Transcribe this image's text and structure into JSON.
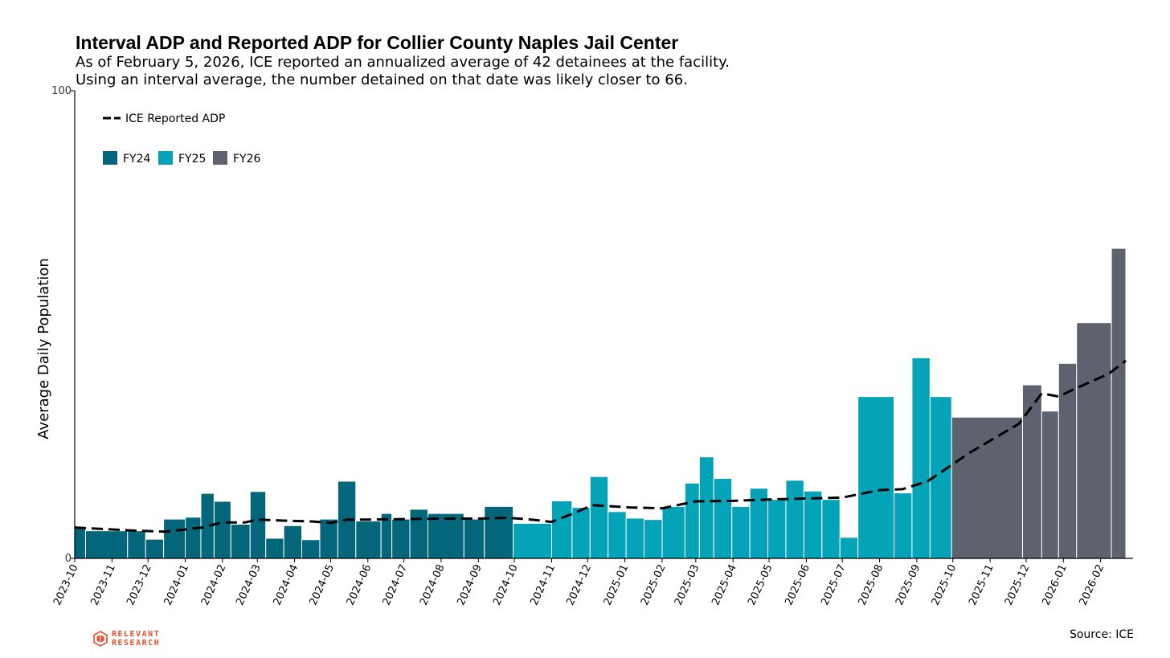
{
  "title": "Interval ADP and Reported ADP for Collier County Naples Jail Center",
  "subtitle_lines": [
    "As of February 5, 2026, ICE reported an annualized average of 42 detainees at the facility.",
    "Using an interval average, the number detained on that date was likely closer to 66."
  ],
  "source": "Source: ICE",
  "logo": {
    "line1": "RELEVANT",
    "line2": "RESEARCH",
    "color": "#e0502a"
  },
  "colors": {
    "FY24": "#03667a",
    "FY25": "#05a3b8",
    "FY26": "#5e616e",
    "line": "#000000"
  },
  "chart_data": {
    "type": "bar",
    "ylabel": "Average Daily Population",
    "xlabel": "",
    "ylim": [
      0,
      100
    ],
    "yticks": [
      0,
      100
    ],
    "xlim": [
      "2023-10-01",
      "2026-02-28"
    ],
    "xticks": [
      "2023-10",
      "2023-11",
      "2023-12",
      "2024-01",
      "2024-02",
      "2024-03",
      "2024-04",
      "2024-05",
      "2024-06",
      "2024-07",
      "2024-08",
      "2024-09",
      "2024-10",
      "2024-11",
      "2024-12",
      "2025-01",
      "2025-02",
      "2025-03",
      "2025-04",
      "2025-05",
      "2025-06",
      "2025-07",
      "2025-08",
      "2025-09",
      "2025-10",
      "2025-11",
      "2025-12",
      "2026-01",
      "2026-02"
    ],
    "legend": {
      "position": "top-left",
      "line_label": "ICE Reported ADP",
      "fiscal_years": [
        "FY24",
        "FY25",
        "FY26"
      ]
    },
    "bars": [
      {
        "start": "2023-10-01",
        "end": "2023-10-10",
        "value": 6.5,
        "fy": "FY24"
      },
      {
        "start": "2023-10-10",
        "end": "2023-11-14",
        "value": 5.9,
        "fy": "FY24"
      },
      {
        "start": "2023-11-14",
        "end": "2023-11-29",
        "value": 5.9,
        "fy": "FY24"
      },
      {
        "start": "2023-11-29",
        "end": "2023-12-14",
        "value": 4.1,
        "fy": "FY24"
      },
      {
        "start": "2023-12-14",
        "end": "2024-01-01",
        "value": 8.4,
        "fy": "FY24"
      },
      {
        "start": "2024-01-01",
        "end": "2024-01-14",
        "value": 8.8,
        "fy": "FY24"
      },
      {
        "start": "2024-01-14",
        "end": "2024-01-25",
        "value": 13.9,
        "fy": "FY24"
      },
      {
        "start": "2024-01-25",
        "end": "2024-02-08",
        "value": 12.2,
        "fy": "FY24"
      },
      {
        "start": "2024-02-08",
        "end": "2024-02-24",
        "value": 7.3,
        "fy": "FY24"
      },
      {
        "start": "2024-02-24",
        "end": "2024-03-08",
        "value": 14.3,
        "fy": "FY24"
      },
      {
        "start": "2024-03-08",
        "end": "2024-03-23",
        "value": 4.3,
        "fy": "FY24"
      },
      {
        "start": "2024-03-23",
        "end": "2024-04-07",
        "value": 7.0,
        "fy": "FY24"
      },
      {
        "start": "2024-04-07",
        "end": "2024-04-22",
        "value": 4.0,
        "fy": "FY24"
      },
      {
        "start": "2024-04-22",
        "end": "2024-05-07",
        "value": 8.4,
        "fy": "FY24"
      },
      {
        "start": "2024-05-07",
        "end": "2024-05-22",
        "value": 16.5,
        "fy": "FY24"
      },
      {
        "start": "2024-05-22",
        "end": "2024-06-12",
        "value": 8.0,
        "fy": "FY24"
      },
      {
        "start": "2024-06-12",
        "end": "2024-06-21",
        "value": 9.6,
        "fy": "FY24"
      },
      {
        "start": "2024-06-21",
        "end": "2024-07-06",
        "value": 8.4,
        "fy": "FY24"
      },
      {
        "start": "2024-07-06",
        "end": "2024-07-21",
        "value": 10.5,
        "fy": "FY24"
      },
      {
        "start": "2024-07-21",
        "end": "2024-08-20",
        "value": 9.6,
        "fy": "FY24"
      },
      {
        "start": "2024-08-20",
        "end": "2024-09-06",
        "value": 8.4,
        "fy": "FY24"
      },
      {
        "start": "2024-09-06",
        "end": "2024-09-30",
        "value": 11.1,
        "fy": "FY24"
      },
      {
        "start": "2024-09-30",
        "end": "2024-11-01",
        "value": 7.5,
        "fy": "FY25"
      },
      {
        "start": "2024-11-01",
        "end": "2024-11-18",
        "value": 12.3,
        "fy": "FY25"
      },
      {
        "start": "2024-11-18",
        "end": "2024-12-03",
        "value": 10.9,
        "fy": "FY25"
      },
      {
        "start": "2024-12-03",
        "end": "2024-12-18",
        "value": 17.5,
        "fy": "FY25"
      },
      {
        "start": "2024-12-18",
        "end": "2025-01-02",
        "value": 10.0,
        "fy": "FY25"
      },
      {
        "start": "2025-01-02",
        "end": "2025-01-17",
        "value": 8.6,
        "fy": "FY25"
      },
      {
        "start": "2025-01-17",
        "end": "2025-02-01",
        "value": 8.3,
        "fy": "FY25"
      },
      {
        "start": "2025-02-01",
        "end": "2025-02-20",
        "value": 11.1,
        "fy": "FY25"
      },
      {
        "start": "2025-02-20",
        "end": "2025-03-04",
        "value": 16.1,
        "fy": "FY25"
      },
      {
        "start": "2025-03-04",
        "end": "2025-03-16",
        "value": 21.7,
        "fy": "FY25"
      },
      {
        "start": "2025-03-16",
        "end": "2025-03-31",
        "value": 17.1,
        "fy": "FY25"
      },
      {
        "start": "2025-03-31",
        "end": "2025-04-15",
        "value": 11.1,
        "fy": "FY25"
      },
      {
        "start": "2025-04-15",
        "end": "2025-04-30",
        "value": 15.0,
        "fy": "FY25"
      },
      {
        "start": "2025-04-30",
        "end": "2025-05-15",
        "value": 12.6,
        "fy": "FY25"
      },
      {
        "start": "2025-05-15",
        "end": "2025-05-30",
        "value": 16.7,
        "fy": "FY25"
      },
      {
        "start": "2025-05-30",
        "end": "2025-06-14",
        "value": 14.4,
        "fy": "FY25"
      },
      {
        "start": "2025-06-14",
        "end": "2025-06-29",
        "value": 12.6,
        "fy": "FY25"
      },
      {
        "start": "2025-06-29",
        "end": "2025-07-14",
        "value": 4.5,
        "fy": "FY25"
      },
      {
        "start": "2025-07-14",
        "end": "2025-08-13",
        "value": 34.6,
        "fy": "FY25"
      },
      {
        "start": "2025-08-13",
        "end": "2025-08-28",
        "value": 14.0,
        "fy": "FY25"
      },
      {
        "start": "2025-08-28",
        "end": "2025-09-12",
        "value": 42.9,
        "fy": "FY25"
      },
      {
        "start": "2025-09-12",
        "end": "2025-09-30",
        "value": 34.6,
        "fy": "FY25"
      },
      {
        "start": "2025-09-30",
        "end": "2025-11-28",
        "value": 30.2,
        "fy": "FY26"
      },
      {
        "start": "2025-11-28",
        "end": "2025-12-14",
        "value": 37.1,
        "fy": "FY26"
      },
      {
        "start": "2025-12-14",
        "end": "2025-12-28",
        "value": 31.5,
        "fy": "FY26"
      },
      {
        "start": "2025-12-28",
        "end": "2026-01-12",
        "value": 41.7,
        "fy": "FY26"
      },
      {
        "start": "2026-01-12",
        "end": "2026-02-10",
        "value": 50.4,
        "fy": "FY26"
      },
      {
        "start": "2026-02-10",
        "end": "2026-02-22",
        "value": 66.3,
        "fy": "FY26"
      }
    ],
    "reported_adp": [
      {
        "date": "2023-10-01",
        "value": 6.6
      },
      {
        "date": "2023-11-15",
        "value": 6.0
      },
      {
        "date": "2023-12-15",
        "value": 5.7
      },
      {
        "date": "2024-01-15",
        "value": 6.6
      },
      {
        "date": "2024-02-01",
        "value": 7.7
      },
      {
        "date": "2024-02-20",
        "value": 7.7
      },
      {
        "date": "2024-03-01",
        "value": 8.3
      },
      {
        "date": "2024-03-20",
        "value": 8.1
      },
      {
        "date": "2024-04-15",
        "value": 7.9
      },
      {
        "date": "2024-05-01",
        "value": 7.6
      },
      {
        "date": "2024-05-15",
        "value": 8.3
      },
      {
        "date": "2024-06-01",
        "value": 8.3
      },
      {
        "date": "2024-07-01",
        "value": 8.4
      },
      {
        "date": "2024-08-01",
        "value": 8.5
      },
      {
        "date": "2024-09-01",
        "value": 8.5
      },
      {
        "date": "2024-09-25",
        "value": 8.7
      },
      {
        "date": "2024-10-15",
        "value": 8.3
      },
      {
        "date": "2024-11-01",
        "value": 7.8
      },
      {
        "date": "2024-11-20",
        "value": 9.7
      },
      {
        "date": "2024-12-05",
        "value": 11.4
      },
      {
        "date": "2025-01-05",
        "value": 10.9
      },
      {
        "date": "2025-02-01",
        "value": 10.7
      },
      {
        "date": "2025-03-01",
        "value": 12.2
      },
      {
        "date": "2025-04-01",
        "value": 12.3
      },
      {
        "date": "2025-05-01",
        "value": 12.6
      },
      {
        "date": "2025-06-01",
        "value": 12.8
      },
      {
        "date": "2025-07-01",
        "value": 13.0
      },
      {
        "date": "2025-08-01",
        "value": 14.6
      },
      {
        "date": "2025-08-20",
        "value": 14.8
      },
      {
        "date": "2025-09-10",
        "value": 16.5
      },
      {
        "date": "2025-10-15",
        "value": 22.6
      },
      {
        "date": "2025-11-25",
        "value": 28.8
      },
      {
        "date": "2025-12-14",
        "value": 35.3
      },
      {
        "date": "2025-12-28",
        "value": 34.6
      },
      {
        "date": "2026-01-10",
        "value": 36.2
      },
      {
        "date": "2026-02-08",
        "value": 39.5
      },
      {
        "date": "2026-02-22",
        "value": 42.3
      }
    ]
  }
}
